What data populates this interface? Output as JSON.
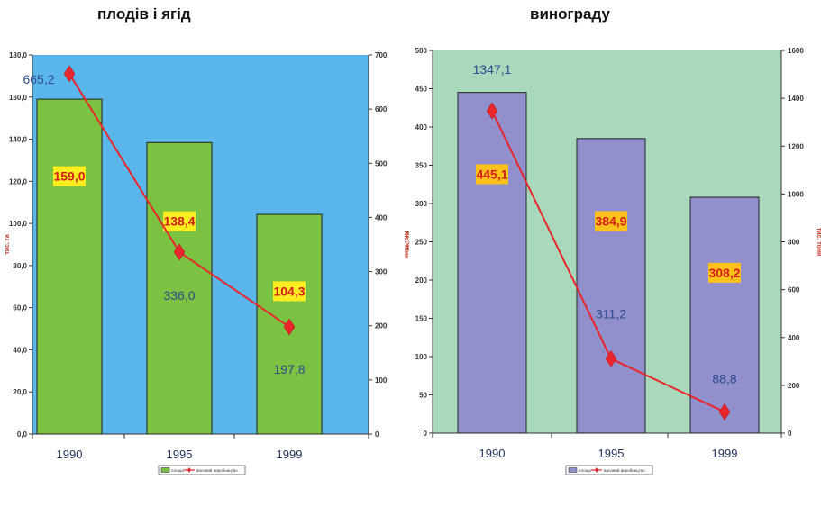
{
  "chart_data": [
    {
      "type": "bar",
      "title": "плодів і ягід",
      "categories": [
        "1990",
        "1995",
        "1999"
      ],
      "series": [
        {
          "name": "площа",
          "axis": "left",
          "values": [
            159.0,
            138.4,
            104.3
          ],
          "labels": [
            "159,0",
            "138,4",
            "104,3"
          ]
        },
        {
          "name": "валовий виробництво",
          "axis": "right",
          "type": "line",
          "values": [
            665.2,
            336.0,
            197.8
          ],
          "labels": [
            "665,2",
            "336,0",
            "197,8"
          ]
        }
      ],
      "ylabel": "тис. га",
      "y2label": "тис. тонн",
      "ylim": [
        0,
        180
      ],
      "y2lim": [
        0,
        700
      ],
      "yticks": [
        "0,0",
        "20,0",
        "40,0",
        "60,0",
        "80,0",
        "100,0",
        "120,0",
        "140,0",
        "160,0",
        "180,0"
      ],
      "y2ticks": [
        "0",
        "100",
        "200",
        "300",
        "400",
        "500",
        "600",
        "700"
      ],
      "colors": {
        "background": "#5ab6ea",
        "bar": "#7cc242",
        "line": "#e8262c",
        "label_box": "#ffee1f",
        "bar_label": "#d41c1c",
        "line_label": "#2e4a8f"
      },
      "legend": "bottom"
    },
    {
      "type": "bar",
      "title": "винограду",
      "categories": [
        "1990",
        "1995",
        "1999"
      ],
      "series": [
        {
          "name": "площа",
          "axis": "left",
          "values": [
            445.1,
            384.9,
            308.2
          ],
          "labels": [
            "445,1",
            "384,9",
            "308,2"
          ]
        },
        {
          "name": "валовий виробництво",
          "axis": "right",
          "type": "line",
          "values": [
            1347.1,
            311.2,
            88.8
          ],
          "labels": [
            "1347,1",
            "311,2",
            "88,8"
          ]
        }
      ],
      "ylabel": "тис. га",
      "y2label": "тис. тонн",
      "ylim": [
        0,
        500
      ],
      "y2lim": [
        0,
        1600
      ],
      "yticks": [
        "0",
        "50",
        "100",
        "150",
        "200",
        "250",
        "300",
        "350",
        "400",
        "450",
        "500"
      ],
      "y2ticks": [
        "0",
        "200",
        "400",
        "600",
        "800",
        "1000",
        "1200",
        "1400",
        "1600"
      ],
      "colors": {
        "background": "#a9d9bd",
        "bar": "#9290cc",
        "line": "#e8262c",
        "label_box": "#ffc21a",
        "bar_label": "#d41c1c",
        "line_label": "#2e4a8f"
      },
      "legend": "bottom"
    }
  ]
}
